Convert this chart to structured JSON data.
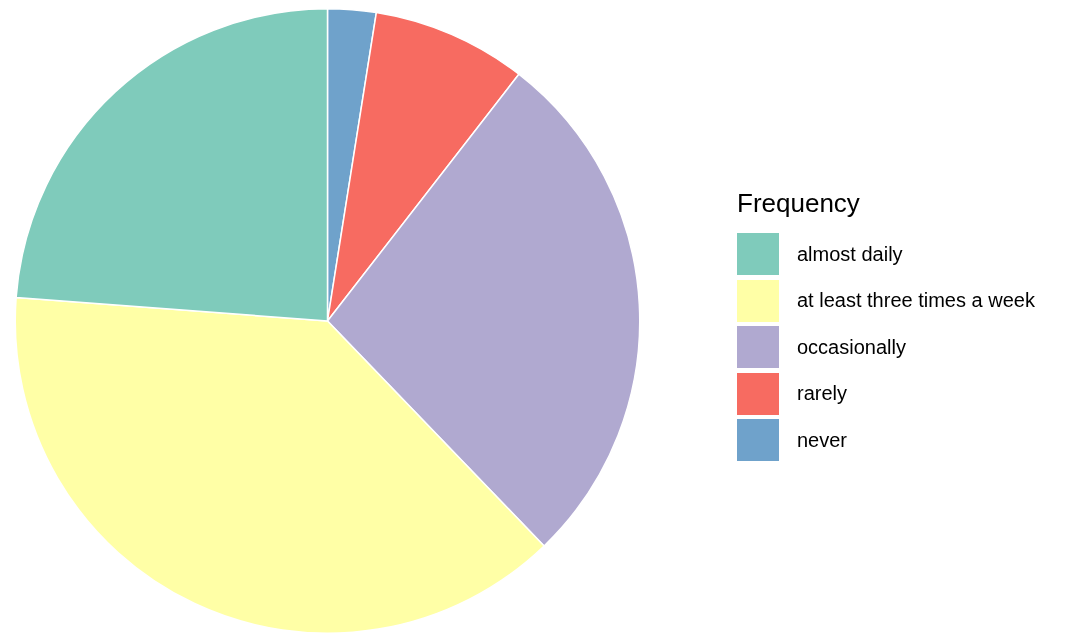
{
  "chart_data": {
    "type": "pie",
    "legend_title": "Frequency",
    "legend": "right",
    "categories": [
      "almost daily",
      "at least three times a week",
      "occasionally",
      "rarely",
      "never"
    ],
    "values": [
      23.8,
      38.4,
      27.3,
      8.0,
      2.5
    ],
    "colors": [
      "#7fcbbb",
      "#ffffa6",
      "#b0a9d0",
      "#f76b61",
      "#6fa2cb"
    ]
  }
}
